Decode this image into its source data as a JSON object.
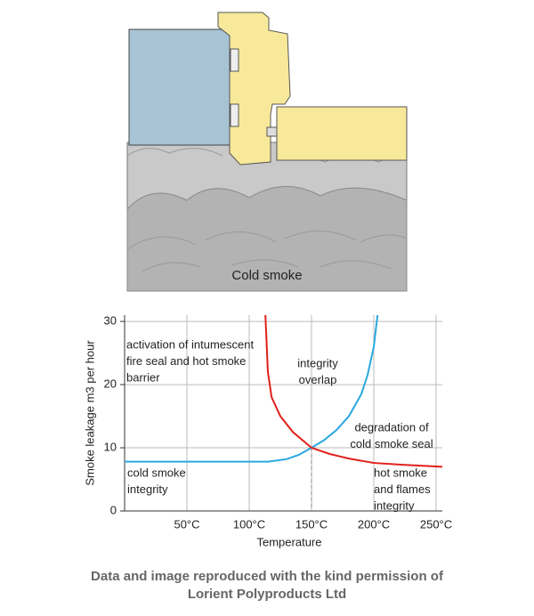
{
  "diagram": {
    "label": "Cold smoke"
  },
  "chart_data": {
    "type": "line",
    "xlabel": "Temperature",
    "ylabel": "Smoke leakage m3 per hour",
    "xlim": [
      0,
      255
    ],
    "ylim": [
      0,
      31
    ],
    "xticks": [
      {
        "value": 50,
        "label": "50°C"
      },
      {
        "value": 100,
        "label": "100°C"
      },
      {
        "value": 150,
        "label": "150°C"
      },
      {
        "value": 200,
        "label": "200°C"
      },
      {
        "value": 250,
        "label": "250°C"
      }
    ],
    "yticks": [
      0,
      10,
      20,
      30
    ],
    "grid": true,
    "series": [
      {
        "color": "#29a8e0",
        "x": [
          0,
          50,
          100,
          115,
          130,
          140,
          150,
          160,
          170,
          180,
          190,
          195,
          200,
          203
        ],
        "values": [
          7.8,
          7.8,
          7.8,
          7.8,
          8.2,
          8.9,
          10,
          11.2,
          12.8,
          15,
          18.5,
          21.5,
          26,
          31
        ]
      },
      {
        "color": "#e0201a",
        "x": [
          113,
          115,
          118,
          125,
          135,
          150,
          165,
          180,
          200,
          225,
          255
        ],
        "values": [
          31,
          22,
          18,
          15,
          12.5,
          10,
          9,
          8.3,
          7.6,
          7.3,
          7.0
        ]
      }
    ],
    "reference_line": {
      "x": 150,
      "y": 10
    },
    "annotations": [
      [
        "activation of intumescent",
        "fire seal and hot smoke",
        "barrier"
      ],
      [
        "integrity",
        "overlap"
      ],
      [
        "degradation of",
        "cold smoke seal"
      ],
      [
        "cold smoke",
        "integrity"
      ],
      [
        "hot smoke",
        "and flames",
        "integrity"
      ]
    ]
  },
  "caption": [
    "Data and image reproduced with the kind permission of",
    "Lorient Polyproducts Ltd"
  ]
}
